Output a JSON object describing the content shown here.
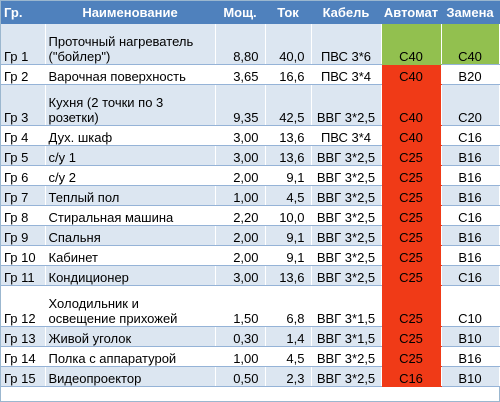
{
  "table": {
    "headers": {
      "group": "Гр.",
      "name": "Наименование",
      "power": "Мощ.",
      "current": "Ток",
      "cable": "Кабель",
      "breaker": "Автомат",
      "replace": "Замена"
    },
    "rows": [
      {
        "group": "Гр 1",
        "name_line1": "Проточный нагреватель",
        "name_line2": "(\"бойлер\")",
        "power": "8,80",
        "current": "40,0",
        "cable": "ПВС 3*6",
        "breaker": "C40",
        "replace": "C40",
        "breaker_color": "#92c04f",
        "replace_color": "#92c04f"
      },
      {
        "group": "Гр 2",
        "name_line1": "Варочная поверхность",
        "name_line2": "",
        "power": "3,65",
        "current": "16,6",
        "cable": "ПВС 3*4",
        "breaker": "C40",
        "replace": "B20",
        "breaker_color": "#f03a17"
      },
      {
        "group": "Гр 3",
        "name_line1": "Кухня (2 точки по 3",
        "name_line2": "розетки)",
        "power": "9,35",
        "current": "42,5",
        "cable": "ВВГ 3*2,5",
        "breaker": "C40",
        "replace": "C20",
        "breaker_color": "#f03a17"
      },
      {
        "group": "Гр 4",
        "name_line1": "Дух. шкаф",
        "name_line2": "",
        "power": "3,00",
        "current": "13,6",
        "cable": "ПВС 3*4",
        "breaker": "C40",
        "replace": "C16",
        "breaker_color": "#f03a17"
      },
      {
        "group": "Гр 5",
        "name_line1": "с/у 1",
        "name_line2": "",
        "power": "3,00",
        "current": "13,6",
        "cable": "ВВГ 3*2,5",
        "breaker": "C25",
        "replace": "B16",
        "breaker_color": "#f03a17"
      },
      {
        "group": "Гр 6",
        "name_line1": "с/у 2",
        "name_line2": "",
        "power": "2,00",
        "current": "9,1",
        "cable": "ВВГ 3*2,5",
        "breaker": "C25",
        "replace": "B16",
        "breaker_color": "#f03a17"
      },
      {
        "group": "Гр 7",
        "name_line1": "Теплый пол",
        "name_line2": "",
        "power": "1,00",
        "current": "4,5",
        "cable": "ВВГ 3*2,5",
        "breaker": "C25",
        "replace": "B16",
        "breaker_color": "#f03a17"
      },
      {
        "group": "Гр 8",
        "name_line1": "Стиральная машина",
        "name_line2": "",
        "power": "2,20",
        "current": "10,0",
        "cable": "ВВГ 3*2,5",
        "breaker": "C25",
        "replace": "C16",
        "breaker_color": "#f03a17"
      },
      {
        "group": "Гр 9",
        "name_line1": "Спальня",
        "name_line2": "",
        "power": "2,00",
        "current": "9,1",
        "cable": "ВВГ 3*2,5",
        "breaker": "C25",
        "replace": "B16",
        "breaker_color": "#f03a17"
      },
      {
        "group": "Гр 10",
        "name_line1": "Кабинет",
        "name_line2": "",
        "power": "2,00",
        "current": "9,1",
        "cable": "ВВГ 3*2,5",
        "breaker": "C25",
        "replace": "B16",
        "breaker_color": "#f03a17"
      },
      {
        "group": "Гр 11",
        "name_line1": "Кондиционер",
        "name_line2": "",
        "power": "3,00",
        "current": "13,6",
        "cable": "ВВГ 3*2,5",
        "breaker": "C25",
        "replace": "C16",
        "breaker_color": "#f03a17"
      },
      {
        "group": "Гр 12",
        "name_line1": "Холодильник и",
        "name_line2": "освещение прихожей",
        "power": "1,50",
        "current": "6,8",
        "cable": "ВВГ 3*1,5",
        "breaker": "C25",
        "replace": "C10",
        "breaker_color": "#f03a17"
      },
      {
        "group": "Гр 13",
        "name_line1": "Живой уголок",
        "name_line2": "",
        "power": "0,30",
        "current": "1,4",
        "cable": "ВВГ 3*1,5",
        "breaker": "C25",
        "replace": "B10",
        "breaker_color": "#f03a17"
      },
      {
        "group": "Гр 14",
        "name_line1": "Полка с аппаратурой",
        "name_line2": "",
        "power": "1,00",
        "current": "4,5",
        "cable": "ВВГ 3*2,5",
        "breaker": "C25",
        "replace": "B16",
        "breaker_color": "#f03a17"
      },
      {
        "group": "Гр 15",
        "name_line1": "Видеопроектор",
        "name_line2": "",
        "power": "0,50",
        "current": "2,3",
        "cable": "ВВГ 3*2,5",
        "breaker": "C16",
        "replace": "B10",
        "breaker_color": "#f03a17"
      }
    ]
  }
}
